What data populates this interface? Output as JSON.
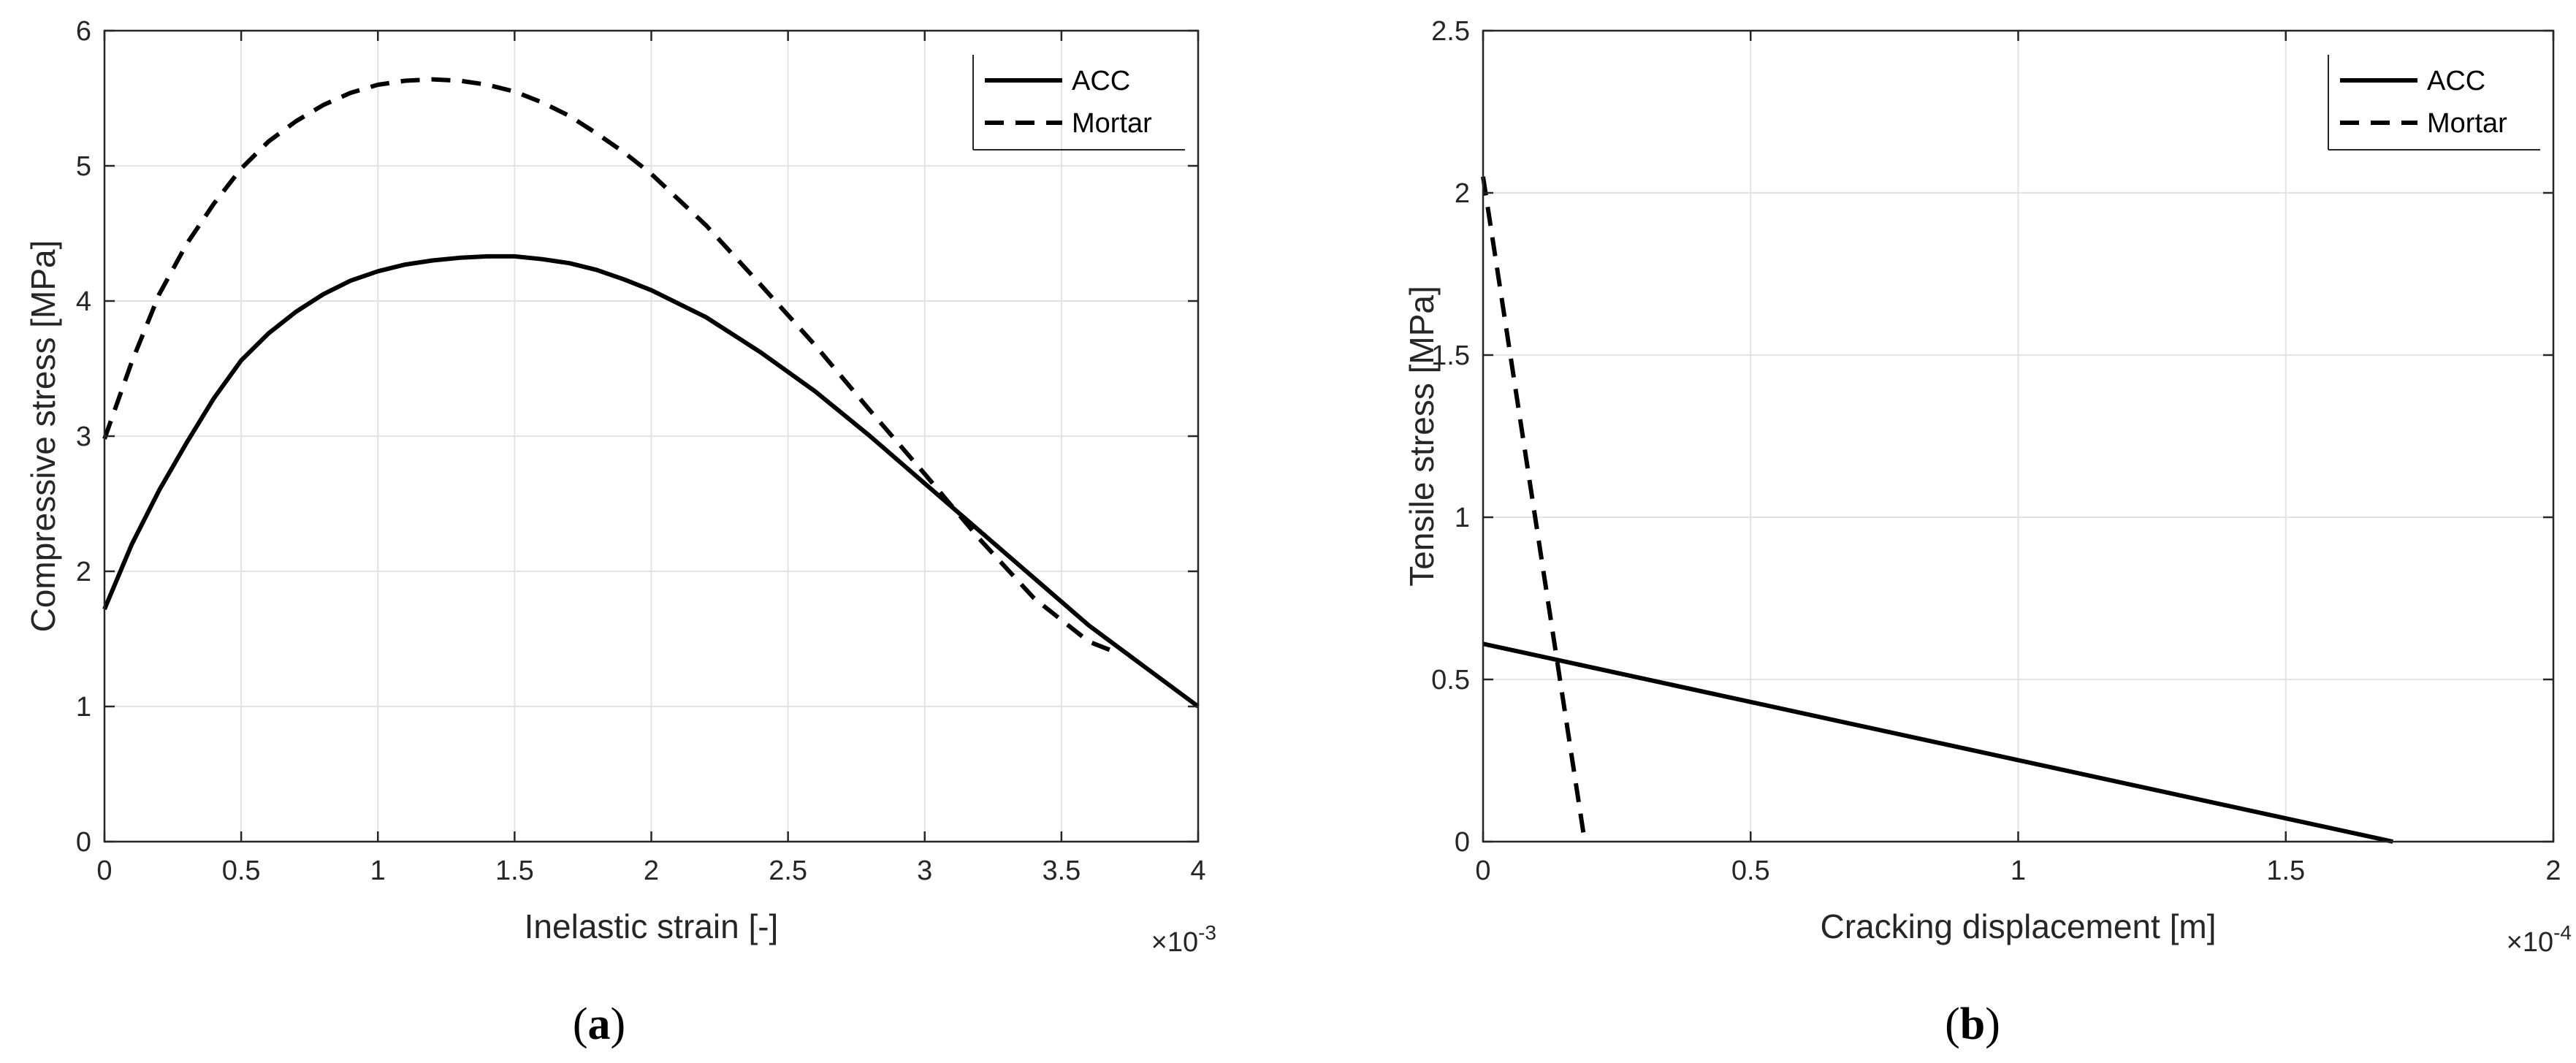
{
  "chart_data": [
    {
      "type": "line",
      "panel": "a",
      "panel_label": "a",
      "xlabel": "Inelastic strain [-]",
      "ylabel": "Compressive stress [MPa]",
      "x_multiplier_base": "×10",
      "x_multiplier_exp": "-3",
      "xlim": [
        0,
        4
      ],
      "ylim": [
        0,
        6
      ],
      "xticks": [
        0,
        0.5,
        1,
        1.5,
        2,
        2.5,
        3,
        3.5,
        4
      ],
      "xtick_labels": [
        "0",
        "0.5",
        "1",
        "1.5",
        "2",
        "2.5",
        "3",
        "3.5",
        "4"
      ],
      "yticks": [
        0,
        1,
        2,
        3,
        4,
        5,
        6
      ],
      "ytick_labels": [
        "0",
        "1",
        "2",
        "3",
        "4",
        "5",
        "6"
      ],
      "grid": true,
      "legend_position": "top-right",
      "series": [
        {
          "name": "ACC",
          "style": "solid",
          "x": [
            0,
            0.1,
            0.2,
            0.3,
            0.4,
            0.5,
            0.6,
            0.7,
            0.8,
            0.9,
            1.0,
            1.1,
            1.2,
            1.3,
            1.4,
            1.5,
            1.6,
            1.7,
            1.8,
            1.9,
            2.0,
            2.2,
            2.4,
            2.6,
            2.8,
            3.0,
            3.2,
            3.4,
            3.6,
            3.8,
            4.0
          ],
          "y": [
            1.72,
            2.2,
            2.6,
            2.95,
            3.28,
            3.56,
            3.76,
            3.92,
            4.05,
            4.15,
            4.22,
            4.27,
            4.3,
            4.32,
            4.33,
            4.33,
            4.31,
            4.28,
            4.23,
            4.16,
            4.08,
            3.88,
            3.62,
            3.33,
            3.0,
            2.65,
            2.3,
            1.95,
            1.6,
            1.3,
            1.0
          ]
        },
        {
          "name": "Mortar",
          "style": "dashed",
          "x": [
            0,
            0.1,
            0.2,
            0.3,
            0.4,
            0.5,
            0.6,
            0.7,
            0.8,
            0.9,
            1.0,
            1.1,
            1.2,
            1.3,
            1.4,
            1.5,
            1.6,
            1.7,
            1.8,
            1.9,
            2.0,
            2.2,
            2.4,
            2.6,
            2.8,
            3.0,
            3.2,
            3.4,
            3.6,
            3.7
          ],
          "y": [
            2.98,
            3.55,
            4.05,
            4.42,
            4.72,
            4.98,
            5.18,
            5.33,
            5.45,
            5.54,
            5.6,
            5.63,
            5.64,
            5.63,
            5.6,
            5.55,
            5.47,
            5.37,
            5.24,
            5.1,
            4.94,
            4.56,
            4.12,
            3.67,
            3.19,
            2.72,
            2.24,
            1.8,
            1.48,
            1.4
          ]
        }
      ]
    },
    {
      "type": "line",
      "panel": "b",
      "panel_label": "b",
      "xlabel": "Cracking displacement [m]",
      "ylabel": "Tensile stress [MPa]",
      "x_multiplier_base": "×10",
      "x_multiplier_exp": "-4",
      "xlim": [
        0,
        2
      ],
      "ylim": [
        0,
        2.5
      ],
      "xticks": [
        0,
        0.5,
        1,
        1.5,
        2
      ],
      "xtick_labels": [
        "0",
        "0.5",
        "1",
        "1.5",
        "2"
      ],
      "yticks": [
        0,
        0.5,
        1,
        1.5,
        2,
        2.5
      ],
      "ytick_labels": [
        "0",
        "0.5",
        "1",
        "1.5",
        "2",
        "2.5"
      ],
      "grid": true,
      "legend_position": "top-right",
      "series": [
        {
          "name": "ACC",
          "style": "solid",
          "x": [
            0,
            1.7
          ],
          "y": [
            0.61,
            0
          ]
        },
        {
          "name": "Mortar",
          "style": "dashed",
          "x": [
            0,
            0.19
          ],
          "y": [
            2.05,
            0
          ]
        }
      ]
    }
  ]
}
